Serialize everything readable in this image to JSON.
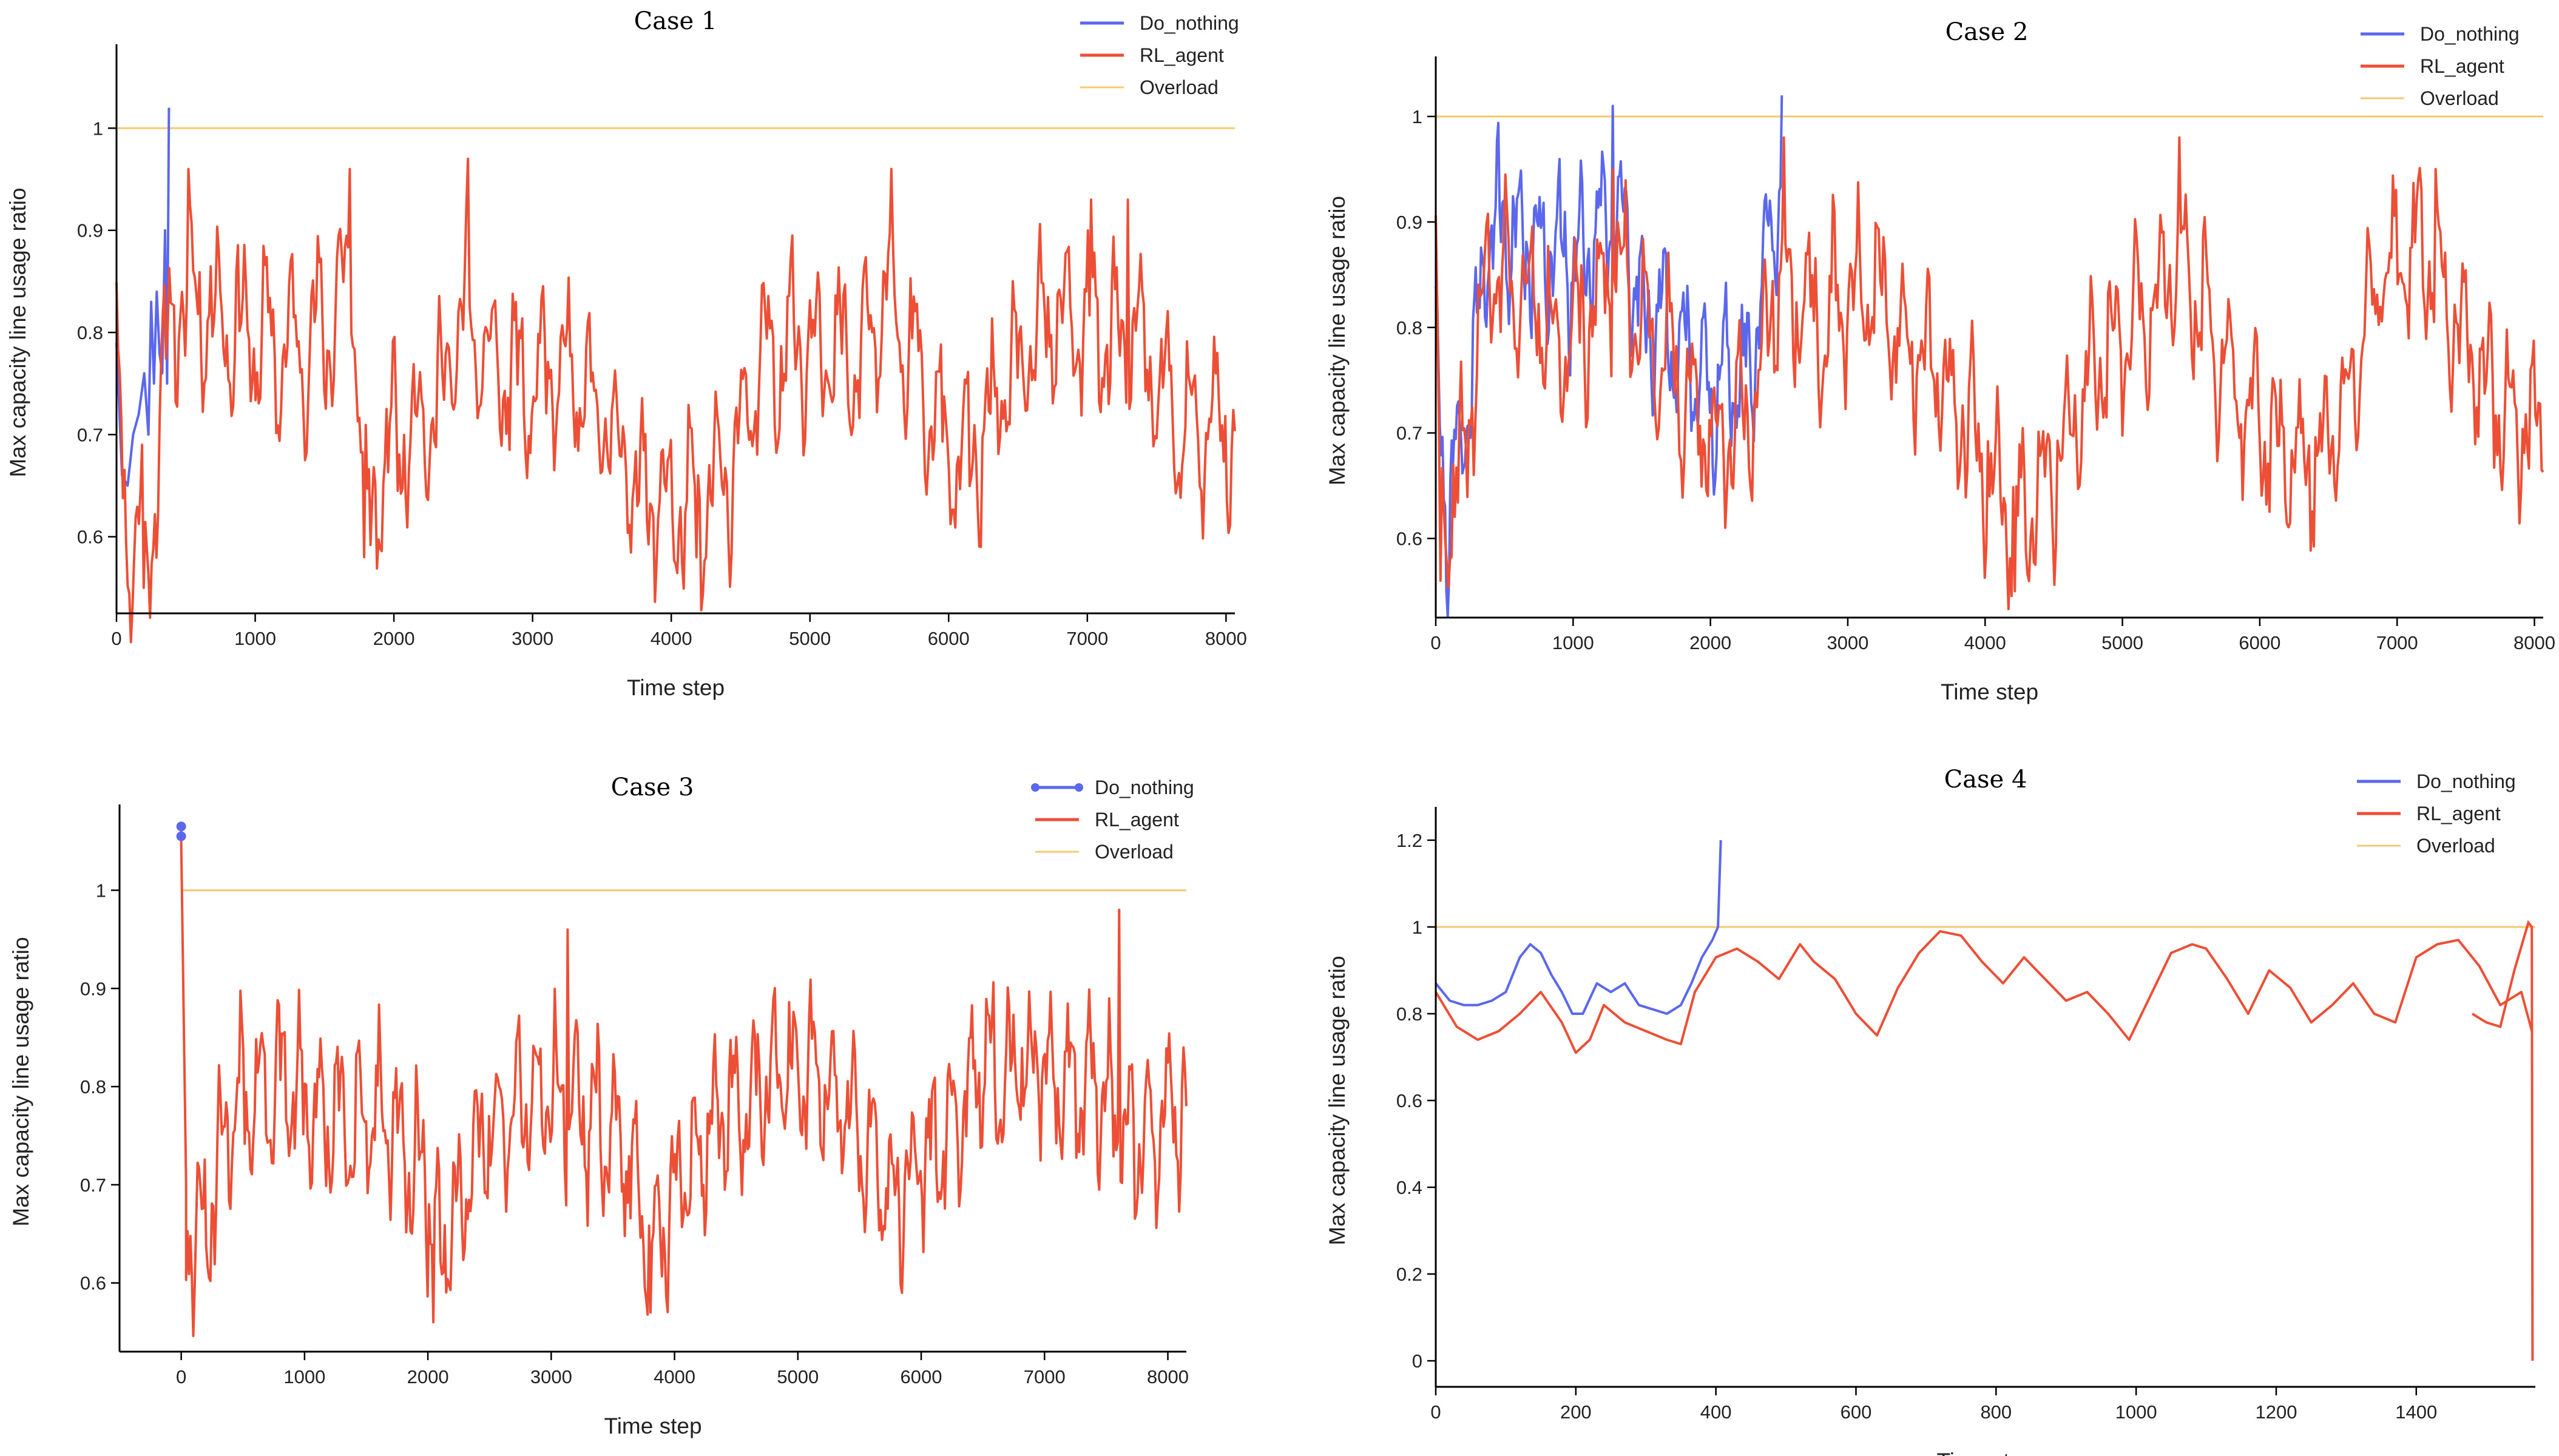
{
  "colors": {
    "do_nothing": "#5b67ec",
    "rl_agent": "#ec4f35",
    "overload": "#f5ca6f"
  },
  "chart_data": [
    {
      "type": "line",
      "title": "Case 1",
      "xlabel": "Time step",
      "ylabel": "Max capacity line usage ratio",
      "xlim": [
        0,
        8064
      ],
      "ylim": [
        0.525,
        1.075
      ],
      "xticks": [
        0,
        1000,
        2000,
        3000,
        4000,
        5000,
        6000,
        7000,
        8000
      ],
      "xtick_labels": [
        "0",
        "1000",
        "2000",
        "3000",
        "4000",
        "5000",
        "6000",
        "7000",
        "8000"
      ],
      "yticks": [
        0.6,
        0.7,
        0.8,
        0.9,
        1.0
      ],
      "ytick_labels": [
        "0.6",
        "0.7",
        "0.8",
        "0.9",
        "1"
      ],
      "legend": [
        "Do_nothing",
        "RL_agent",
        "Overload"
      ],
      "legend_position": "top-right",
      "overload_level": 1.0,
      "series": [
        {
          "name": "Do_nothing",
          "x": [
            0,
            40,
            80,
            120,
            160,
            200,
            230,
            250,
            270,
            290,
            310,
            330,
            350,
            365,
            378
          ],
          "values": [
            0.79,
            0.66,
            0.65,
            0.7,
            0.72,
            0.76,
            0.7,
            0.83,
            0.75,
            0.84,
            0.78,
            0.76,
            0.9,
            0.75,
            1.02
          ]
        },
        {
          "name": "RL_agent",
          "profile": {
            "seed": 11,
            "n_points": 700,
            "base": 0.755,
            "segments": [
              [
                0,
                0.77
              ],
              [
                60,
                0.64
              ],
              [
                120,
                0.58
              ],
              [
                180,
                0.62
              ],
              [
                220,
                0.56
              ],
              [
                300,
                0.7
              ],
              [
                380,
                0.8
              ],
              [
                500,
                0.84
              ],
              [
                900,
                0.8
              ],
              [
                1200,
                0.78
              ],
              [
                1500,
                0.8
              ],
              [
                1700,
                0.86
              ],
              [
                1800,
                0.6
              ],
              [
                2000,
                0.7
              ],
              [
                2300,
                0.72
              ],
              [
                2500,
                0.82
              ],
              [
                2600,
                0.78
              ],
              [
                3000,
                0.74
              ],
              [
                3200,
                0.76
              ],
              [
                3500,
                0.72
              ],
              [
                3800,
                0.64
              ],
              [
                4200,
                0.62
              ],
              [
                4400,
                0.66
              ],
              [
                4700,
                0.78
              ],
              [
                5000,
                0.8
              ],
              [
                5300,
                0.76
              ],
              [
                5600,
                0.84
              ],
              [
                5800,
                0.74
              ],
              [
                6100,
                0.66
              ],
              [
                6400,
                0.74
              ],
              [
                6800,
                0.82
              ],
              [
                7100,
                0.8
              ],
              [
                7400,
                0.78
              ],
              [
                7700,
                0.7
              ],
              [
                8064,
                0.7
              ]
            ],
            "amp": 0.09,
            "period": 180,
            "noise": 0.035
          },
          "peaks": [
            [
              520,
              0.96
            ],
            [
              1680,
              0.96
            ],
            [
              2540,
              0.97
            ],
            [
              5590,
              0.96
            ],
            [
              7030,
              0.93
            ],
            [
              7290,
              0.93
            ]
          ],
          "troughs": [
            [
              200,
              0.55
            ],
            [
              1790,
              0.58
            ],
            [
              4180,
              0.58
            ],
            [
              4250,
              0.58
            ],
            [
              6230,
              0.59
            ]
          ]
        }
      ],
      "endpoint_markers": false
    },
    {
      "type": "line",
      "title": "Case 2",
      "xlabel": "Time step",
      "ylabel": "Max capacity line usage ratio",
      "xlim": [
        0,
        8064
      ],
      "ylim": [
        0.525,
        1.05
      ],
      "xticks": [
        0,
        1000,
        2000,
        3000,
        4000,
        5000,
        6000,
        7000,
        8000
      ],
      "xtick_labels": [
        "0",
        "1000",
        "2000",
        "3000",
        "4000",
        "5000",
        "6000",
        "7000",
        "8000"
      ],
      "yticks": [
        0.6,
        0.7,
        0.8,
        0.9,
        1.0
      ],
      "ytick_labels": [
        "0.6",
        "0.7",
        "0.8",
        "0.9",
        "1"
      ],
      "legend": [
        "Do_nothing",
        "RL_agent",
        "Overload"
      ],
      "legend_position": "top-right",
      "overload_level": 1.0,
      "series": [
        {
          "name": "Do_nothing",
          "profile": {
            "seed": 21,
            "n_points": 260,
            "end_x": 2520,
            "segments": [
              [
                0,
                0.78
              ],
              [
                80,
                0.62
              ],
              [
                200,
                0.7
              ],
              [
                400,
                0.9
              ],
              [
                700,
                0.88
              ],
              [
                1000,
                0.86
              ],
              [
                1300,
                0.92
              ],
              [
                1500,
                0.82
              ],
              [
                1800,
                0.78
              ],
              [
                2000,
                0.74
              ],
              [
                2300,
                0.76
              ],
              [
                2400,
                0.86
              ],
              [
                2520,
                0.95
              ]
            ],
            "amp": 0.08,
            "period": 150,
            "noise": 0.03
          },
          "peaks": [
            [
              1290,
              1.01
            ],
            [
              2525,
              1.02
            ]
          ],
          "troughs": []
        },
        {
          "name": "RL_agent",
          "profile": {
            "seed": 22,
            "n_points": 700,
            "segments": [
              [
                0,
                0.8
              ],
              [
                60,
                0.6
              ],
              [
                160,
                0.64
              ],
              [
                400,
                0.86
              ],
              [
                700,
                0.82
              ],
              [
                1000,
                0.78
              ],
              [
                1300,
                0.86
              ],
              [
                1600,
                0.78
              ],
              [
                2000,
                0.7
              ],
              [
                2300,
                0.72
              ],
              [
                2500,
                0.86
              ],
              [
                2800,
                0.8
              ],
              [
                3100,
                0.84
              ],
              [
                3500,
                0.78
              ],
              [
                3900,
                0.7
              ],
              [
                4200,
                0.62
              ],
              [
                4500,
                0.66
              ],
              [
                4800,
                0.76
              ],
              [
                5100,
                0.8
              ],
              [
                5400,
                0.86
              ],
              [
                5700,
                0.78
              ],
              [
                6000,
                0.7
              ],
              [
                6300,
                0.66
              ],
              [
                6600,
                0.72
              ],
              [
                6900,
                0.86
              ],
              [
                7200,
                0.86
              ],
              [
                7500,
                0.78
              ],
              [
                7800,
                0.72
              ],
              [
                8064,
                0.7
              ]
            ],
            "amp": 0.08,
            "period": 170,
            "noise": 0.035
          },
          "peaks": [
            [
              1290,
              0.95
            ],
            [
              2540,
              0.98
            ],
            [
              5420,
              0.98
            ],
            [
              7280,
              0.95
            ]
          ],
          "troughs": [
            [
              30,
              0.56
            ],
            [
              4220,
              0.55
            ]
          ]
        }
      ],
      "endpoint_markers": false
    },
    {
      "type": "line",
      "title": "Case 3",
      "xlabel": "Time step",
      "ylabel": "Max capacity line usage ratio",
      "xlim": [
        -500,
        8150
      ],
      "ylim": [
        0.53,
        1.08
      ],
      "xticks": [
        0,
        1000,
        2000,
        3000,
        4000,
        5000,
        6000,
        7000,
        8000
      ],
      "xtick_labels": [
        "0",
        "1000",
        "2000",
        "3000",
        "4000",
        "5000",
        "6000",
        "7000",
        "8000"
      ],
      "yticks": [
        0.6,
        0.7,
        0.8,
        0.9,
        1.0
      ],
      "ytick_labels": [
        "0.6",
        "0.7",
        "0.8",
        "0.9",
        "1"
      ],
      "legend": [
        "Do_nothing",
        "RL_agent",
        "Overload"
      ],
      "legend_position": "top-right",
      "overload_level": 1.0,
      "series": [
        {
          "name": "Do_nothing",
          "x": [
            0,
            0
          ],
          "values": [
            1.065,
            1.055
          ],
          "markers": true
        },
        {
          "name": "RL_agent",
          "profile": {
            "seed": 31,
            "n_points": 700,
            "start": [
              [
                0,
                1.05
              ],
              [
                40,
                0.7
              ]
            ],
            "segments": [
              [
                40,
                0.66
              ],
              [
                200,
                0.64
              ],
              [
                400,
                0.78
              ],
              [
                800,
                0.8
              ],
              [
                1200,
                0.76
              ],
              [
                1600,
                0.78
              ],
              [
                2000,
                0.7
              ],
              [
                2100,
                0.62
              ],
              [
                2500,
                0.76
              ],
              [
                3000,
                0.8
              ],
              [
                3200,
                0.78
              ],
              [
                3600,
                0.74
              ],
              [
                3800,
                0.62
              ],
              [
                4100,
                0.72
              ],
              [
                4500,
                0.78
              ],
              [
                5000,
                0.82
              ],
              [
                5400,
                0.78
              ],
              [
                5800,
                0.68
              ],
              [
                6100,
                0.74
              ],
              [
                6500,
                0.82
              ],
              [
                7000,
                0.82
              ],
              [
                7400,
                0.8
              ],
              [
                7800,
                0.74
              ],
              [
                8064,
                0.78
              ]
            ],
            "amp": 0.085,
            "period": 160,
            "noise": 0.035
          },
          "peaks": [
            [
              3130,
              0.96
            ],
            [
              7600,
              0.98
            ]
          ],
          "troughs": [
            [
              2050,
              0.56
            ],
            [
              3800,
              0.57
            ],
            [
              5840,
              0.59
            ]
          ]
        }
      ],
      "endpoint_markers": true
    },
    {
      "type": "line",
      "title": "Case 4",
      "xlabel": "Time step",
      "ylabel": "Max capacity line usage ratio",
      "xlim": [
        0,
        1570
      ],
      "ylim": [
        -0.06,
        1.26
      ],
      "xticks": [
        0,
        200,
        400,
        600,
        800,
        1000,
        1200,
        1400
      ],
      "xtick_labels": [
        "0",
        "200",
        "400",
        "600",
        "800",
        "1000",
        "1200",
        "1400"
      ],
      "yticks": [
        0,
        0.2,
        0.4,
        0.6,
        0.8,
        1.0,
        1.2
      ],
      "ytick_labels": [
        "0",
        "0.2",
        "0.4",
        "0.6",
        "0.8",
        "1",
        "1.2"
      ],
      "legend": [
        "Do_nothing",
        "RL_agent",
        "Overload"
      ],
      "legend_position": "top-right",
      "overload_level": 1.0,
      "series": [
        {
          "name": "Do_nothing",
          "x": [
            0,
            20,
            40,
            60,
            80,
            100,
            120,
            135,
            150,
            165,
            180,
            195,
            210,
            230,
            250,
            270,
            290,
            310,
            330,
            350,
            365,
            380,
            395,
            403,
            407
          ],
          "values": [
            0.87,
            0.83,
            0.82,
            0.82,
            0.83,
            0.85,
            0.93,
            0.96,
            0.94,
            0.89,
            0.85,
            0.8,
            0.8,
            0.87,
            0.85,
            0.87,
            0.82,
            0.81,
            0.8,
            0.82,
            0.87,
            0.93,
            0.97,
            1.0,
            1.2
          ]
        },
        {
          "name": "RL_agent",
          "x": [
            0,
            30,
            60,
            90,
            120,
            150,
            180,
            200,
            220,
            240,
            270,
            300,
            330,
            350,
            370,
            400,
            430,
            460,
            490,
            520,
            540,
            570,
            600,
            630,
            660,
            690,
            720,
            750,
            780,
            810,
            840,
            870,
            900,
            930,
            960,
            990,
            1020,
            1050,
            1080,
            1100,
            1130,
            1160,
            1190,
            1220,
            1250,
            1280,
            1310,
            1340,
            1370,
            1400,
            1430,
            1460,
            1490,
            1520,
            1550,
            1560,
            1565
          ],
          "values": [
            0.85,
            0.77,
            0.74,
            0.76,
            0.8,
            0.85,
            0.78,
            0.71,
            0.74,
            0.82,
            0.78,
            0.76,
            0.74,
            0.73,
            0.85,
            0.93,
            0.95,
            0.92,
            0.88,
            0.96,
            0.92,
            0.88,
            0.8,
            0.75,
            0.86,
            0.94,
            0.99,
            0.98,
            0.92,
            0.87,
            0.93,
            0.88,
            0.83,
            0.85,
            0.8,
            0.74,
            0.84,
            0.94,
            0.96,
            0.95,
            0.88,
            0.8,
            0.9,
            0.86,
            0.78,
            0.82,
            0.87,
            0.8,
            0.78,
            0.93,
            0.96,
            0.97,
            0.91,
            0.82,
            0.85,
            0.79,
            0.76
          ]
        }
      ],
      "rl_tail": {
        "x": [
          1480,
          1500,
          1520,
          1540,
          1560,
          1565,
          1566
        ],
        "values": [
          0.8,
          0.78,
          0.77,
          0.9,
          1.01,
          1.0,
          0.0
        ]
      },
      "endpoint_markers": false
    }
  ]
}
